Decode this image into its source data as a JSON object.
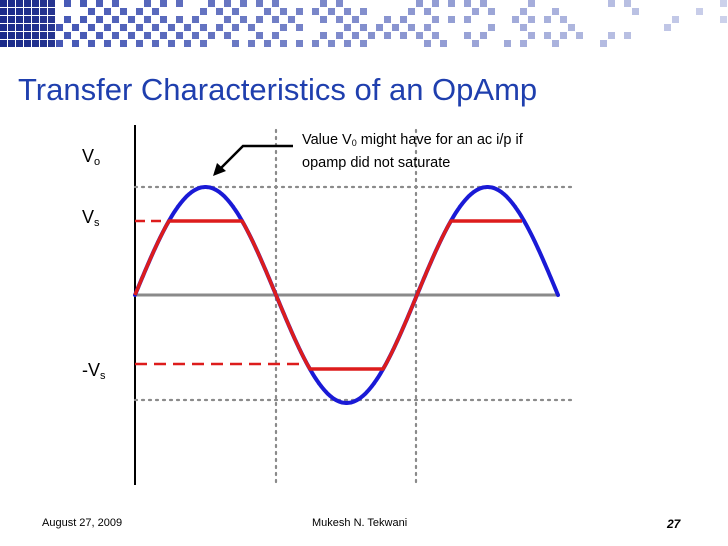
{
  "title": "Transfer Characteristics of an OpAmp",
  "labels": {
    "vo": {
      "base": "V",
      "sub": "o"
    },
    "vs": {
      "base": "V",
      "sub": "s"
    },
    "neg_vs": {
      "base": "-V",
      "sub": "s"
    }
  },
  "annotation": {
    "line1_before": "Value V",
    "line1_sub": "0",
    "line1_after": " might have for an ac i/p if",
    "line2": "opamp did not saturate"
  },
  "colors": {
    "title": "#1f3fae",
    "ideal_wave": "#1a1ad6",
    "clipped_wave": "#dd1c1c",
    "zero_axis": "#8a8a8a",
    "guides": "#8a8a8a",
    "header_checker": "#2b3c9e"
  },
  "footer": {
    "date": "August 27, 2009",
    "author": "Mukesh N. Tekwani",
    "page": "27"
  }
}
